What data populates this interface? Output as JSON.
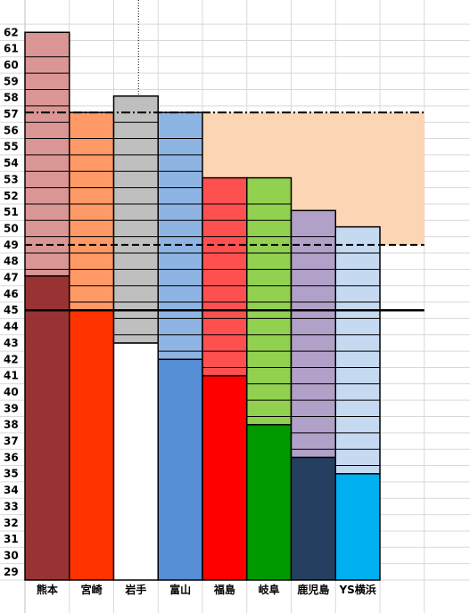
{
  "chart_data": {
    "type": "bar",
    "title": "",
    "xlabel": "",
    "ylabel": "",
    "ylim": [
      29,
      62
    ],
    "y_ticks": [
      29,
      30,
      31,
      32,
      33,
      34,
      35,
      36,
      37,
      38,
      39,
      40,
      41,
      42,
      43,
      44,
      45,
      46,
      47,
      48,
      49,
      50,
      51,
      52,
      53,
      54,
      55,
      56,
      57,
      58,
      59,
      60,
      61,
      62
    ],
    "grid": true,
    "categories": [
      "熊本",
      "宮崎",
      "岩手",
      "富山",
      "福島",
      "岐阜",
      "鹿児島",
      "YS横浜"
    ],
    "series": [
      {
        "values": [
          46.6,
          44.5,
          42.5,
          41.5,
          40.5,
          37.5,
          35.5,
          34.5
        ],
        "colors": [
          "#993333",
          "#ff3300",
          "#ffffff",
          "#558ed5",
          "#ff0000",
          "#009900",
          "#243f60",
          "#00b0f0"
        ]
      },
      {
        "values": [
          61.5,
          56.6,
          57.6,
          56.6,
          52.6,
          52.6,
          50.6,
          49.6
        ],
        "colors": [
          "#da9694",
          "#ff9966",
          "#bfbfbf",
          "#8eb4e3",
          "#ff5050",
          "#92d050",
          "#b1a0c7",
          "#c5d9f1"
        ]
      }
    ],
    "reference_lines": [
      {
        "value": 44.5,
        "style": "solid"
      },
      {
        "value": 48.5,
        "style": "dashed"
      },
      {
        "value": 56.6,
        "style": "dash-dot"
      }
    ],
    "shaded_band": {
      "from": 48.5,
      "to": 56.6,
      "color": "#fcd5b4"
    },
    "colors": {
      "grid": "#d9d9d9",
      "outline": "#000000"
    }
  }
}
